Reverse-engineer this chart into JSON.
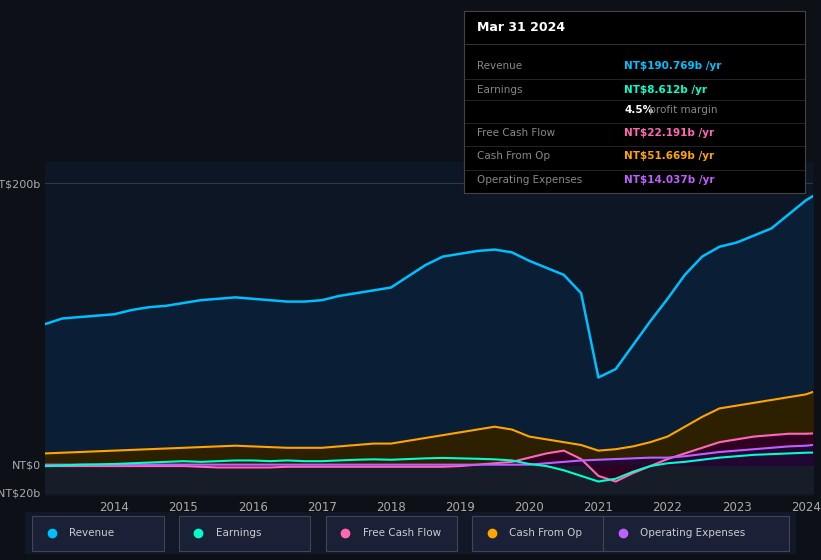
{
  "background_color": "#0d1117",
  "plot_bg_color": "#111827",
  "title": "Mar 31 2024",
  "years": [
    2013.0,
    2013.25,
    2013.5,
    2013.75,
    2014.0,
    2014.25,
    2014.5,
    2014.75,
    2015.0,
    2015.25,
    2015.5,
    2015.75,
    2016.0,
    2016.25,
    2016.5,
    2016.75,
    2017.0,
    2017.25,
    2017.5,
    2017.75,
    2018.0,
    2018.25,
    2018.5,
    2018.75,
    2019.0,
    2019.25,
    2019.5,
    2019.75,
    2020.0,
    2020.25,
    2020.5,
    2020.75,
    2021.0,
    2021.25,
    2021.5,
    2021.75,
    2022.0,
    2022.25,
    2022.5,
    2022.75,
    2023.0,
    2023.25,
    2023.5,
    2023.75,
    2024.0,
    2024.1
  ],
  "revenue": [
    100,
    104,
    105,
    106,
    107,
    110,
    112,
    113,
    115,
    117,
    118,
    119,
    118,
    117,
    116,
    116,
    117,
    120,
    122,
    124,
    126,
    134,
    142,
    148,
    150,
    152,
    153,
    151,
    145,
    140,
    135,
    122,
    62,
    68,
    85,
    102,
    118,
    135,
    148,
    155,
    158,
    163,
    168,
    178,
    188,
    191
  ],
  "earnings": [
    -1,
    -0.5,
    0,
    0.2,
    0.5,
    1,
    1.5,
    2,
    2.5,
    2,
    2.5,
    3,
    3,
    2.5,
    3,
    2.5,
    2.5,
    3,
    3.5,
    3.8,
    3.5,
    4,
    4.5,
    4.8,
    4.5,
    4.2,
    3.8,
    3,
    0.5,
    -1,
    -4,
    -8,
    -12,
    -10,
    -5,
    -1,
    1,
    2,
    3.5,
    5,
    6,
    7,
    7.5,
    8,
    8.5,
    8.6
  ],
  "free_cash_flow": [
    -1,
    -1,
    -1,
    -1,
    -1,
    -1,
    -1,
    -1,
    -1,
    -1.5,
    -2,
    -2,
    -2,
    -2,
    -1.5,
    -1.5,
    -1.5,
    -1.5,
    -1.5,
    -1.5,
    -1.5,
    -1.5,
    -1.5,
    -1.5,
    -1,
    0,
    1,
    2,
    5,
    8,
    10,
    4,
    -8,
    -12,
    -6,
    -1,
    4,
    8,
    12,
    16,
    18,
    20,
    21,
    22,
    22,
    22.2
  ],
  "cash_from_op": [
    8,
    8.5,
    9,
    9.5,
    10,
    10.5,
    11,
    11.5,
    12,
    12.5,
    13,
    13.5,
    13,
    12.5,
    12,
    12,
    12,
    13,
    14,
    15,
    15,
    17,
    19,
    21,
    23,
    25,
    27,
    25,
    20,
    18,
    16,
    14,
    10,
    11,
    13,
    16,
    20,
    27,
    34,
    40,
    42,
    44,
    46,
    48,
    50,
    51.7
  ],
  "operating_expenses": [
    0,
    0,
    0,
    0,
    0,
    0,
    0,
    0,
    0,
    0,
    0,
    0,
    0,
    0,
    0,
    0,
    0,
    0,
    0,
    0,
    0,
    0,
    0,
    0,
    0,
    0,
    0,
    0,
    0,
    1,
    2,
    3,
    3.5,
    4,
    4.5,
    5,
    5,
    6,
    7.5,
    9,
    10,
    11,
    12,
    13,
    13.5,
    14
  ],
  "revenue_color": "#00bfff",
  "earnings_color": "#00ffcc",
  "fcf_color": "#ff69b4",
  "cashop_color": "#ffa500",
  "opex_color": "#bf5fff",
  "legend_items": [
    {
      "label": "Revenue",
      "color": "#00bfff"
    },
    {
      "label": "Earnings",
      "color": "#00ffcc"
    },
    {
      "label": "Free Cash Flow",
      "color": "#ff69b4"
    },
    {
      "label": "Cash From Op",
      "color": "#ffa500"
    },
    {
      "label": "Operating Expenses",
      "color": "#bf5fff"
    }
  ],
  "info_rows": [
    {
      "label": "Revenue",
      "value": "NT$190.769b /yr",
      "value_color": "#00bfff"
    },
    {
      "label": "Earnings",
      "value": "NT$8.612b /yr",
      "value_color": "#00ffcc"
    },
    {
      "label": "",
      "value": "4.5% profit margin",
      "value_color": "#888888"
    },
    {
      "label": "Free Cash Flow",
      "value": "NT$22.191b /yr",
      "value_color": "#ff69b4"
    },
    {
      "label": "Cash From Op",
      "value": "NT$51.669b /yr",
      "value_color": "#ffa500"
    },
    {
      "label": "Operating Expenses",
      "value": "NT$14.037b /yr",
      "value_color": "#bf5fff"
    }
  ]
}
